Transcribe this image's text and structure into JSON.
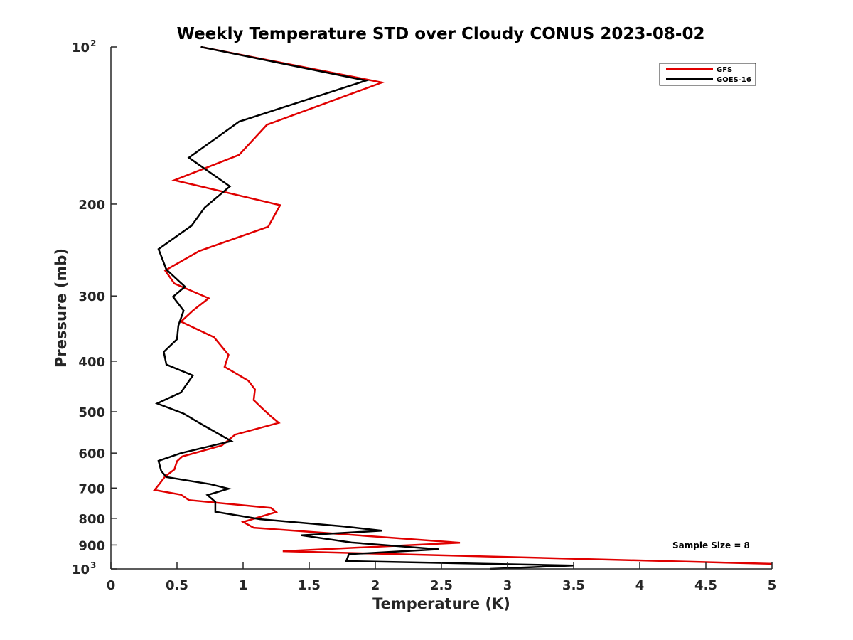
{
  "chart_data": {
    "type": "line",
    "title": "Weekly Temperature STD over Cloudy CONUS 2023-08-02",
    "xlabel": "Temperature (K)",
    "ylabel": "Pressure (mb)",
    "xlim": [
      0,
      5
    ],
    "ylim": [
      100,
      1000
    ],
    "y_scale": "log",
    "y_reversed": true,
    "grid": false,
    "legend_position": "top-right",
    "x_ticks": [
      "0",
      "0.5",
      "1",
      "1.5",
      "2",
      "2.5",
      "3",
      "3.5",
      "4",
      "4.5",
      "5"
    ],
    "y_ticks": [
      {
        "value": 100,
        "base": "10",
        "exp": "2"
      },
      {
        "value": 200,
        "label": "200"
      },
      {
        "value": 300,
        "label": "300"
      },
      {
        "value": 400,
        "label": "400"
      },
      {
        "value": 500,
        "label": "500"
      },
      {
        "value": 600,
        "label": "600"
      },
      {
        "value": 700,
        "label": "700"
      },
      {
        "value": 800,
        "label": "800"
      },
      {
        "value": 900,
        "label": "900"
      },
      {
        "value": 1000,
        "base": "10",
        "exp": "3"
      }
    ],
    "annotation": "Sample Size = 8",
    "series": [
      {
        "name": "GFS",
        "color": "#e00000",
        "x": [
          0.68,
          2.05,
          1.18,
          0.97,
          0.48,
          1.28,
          1.19,
          0.67,
          0.41,
          0.48,
          0.74,
          0.62,
          0.53,
          0.78,
          0.89,
          0.86,
          1.04,
          1.09,
          1.08,
          1.15,
          1.21,
          1.27,
          0.94,
          0.84,
          0.54,
          0.5,
          0.48,
          0.41,
          0.37,
          0.33,
          0.53,
          0.59,
          1.21,
          1.25,
          1.0,
          1.08,
          2.64,
          1.3,
          5.0
        ],
        "y": [
          100,
          117,
          141,
          161,
          180,
          201,
          221,
          246,
          268,
          284,
          303,
          320,
          336,
          360,
          389,
          410,
          436,
          453,
          475,
          494,
          510,
          525,
          553,
          580,
          609,
          622,
          645,
          665,
          686,
          706,
          721,
          738,
          764,
          778,
          813,
          834,
          891,
          925,
          978
        ]
      },
      {
        "name": "GOES-16",
        "color": "#000000",
        "x": [
          0.68,
          1.93,
          0.97,
          0.59,
          0.9,
          0.71,
          0.61,
          0.36,
          0.42,
          0.56,
          0.47,
          0.55,
          0.51,
          0.5,
          0.4,
          0.42,
          0.62,
          0.53,
          0.35,
          0.55,
          0.69,
          0.91,
          0.53,
          0.36,
          0.38,
          0.42,
          0.75,
          0.89,
          0.73,
          0.79,
          0.79,
          1.13,
          1.76,
          2.05,
          1.44,
          1.82,
          2.48,
          1.8,
          1.78,
          3.5,
          2.87
        ],
        "y": [
          100,
          116,
          139,
          163,
          185,
          203,
          220,
          244,
          267,
          288,
          301,
          320,
          342,
          363,
          384,
          406,
          426,
          459,
          482,
          504,
          529,
          569,
          600,
          621,
          649,
          667,
          688,
          702,
          722,
          744,
          777,
          803,
          829,
          845,
          862,
          890,
          917,
          937,
          966,
          985,
          1000
        ]
      }
    ]
  }
}
